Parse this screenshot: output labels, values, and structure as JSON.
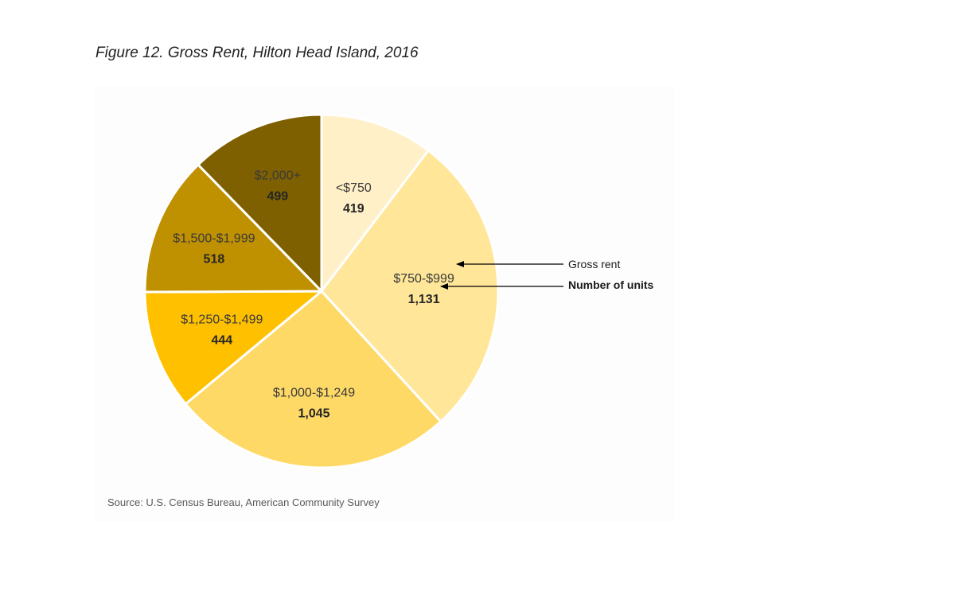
{
  "page": {
    "title": "Figure 12. Gross Rent, Hilton Head Island, 2016",
    "source": "Source: U.S. Census Bureau, American Community Survey"
  },
  "chart_data": {
    "type": "pie",
    "title": "Figure 12. Gross Rent, Hilton Head Island, 2016",
    "categories": [
      "<$750",
      "$750-$999",
      "$1,000-$1,249",
      "$1,250-$1,499",
      "$1,500-$1,999",
      "$2,000+"
    ],
    "values": [
      419,
      1131,
      1045,
      444,
      518,
      499
    ],
    "value_labels": [
      "419",
      "1,131",
      "1,045",
      "444",
      "518",
      "499"
    ],
    "colors": [
      "#fff0c8",
      "#ffe699",
      "#ffd966",
      "#ffc000",
      "#bf9000",
      "#7f6000"
    ],
    "start": "12 o'clock",
    "direction": "clockwise",
    "legend": "none",
    "annotations": [
      {
        "text": "Gross rent",
        "points_to": "category label"
      },
      {
        "text": "Number of units",
        "points_to": "value label"
      }
    ]
  }
}
